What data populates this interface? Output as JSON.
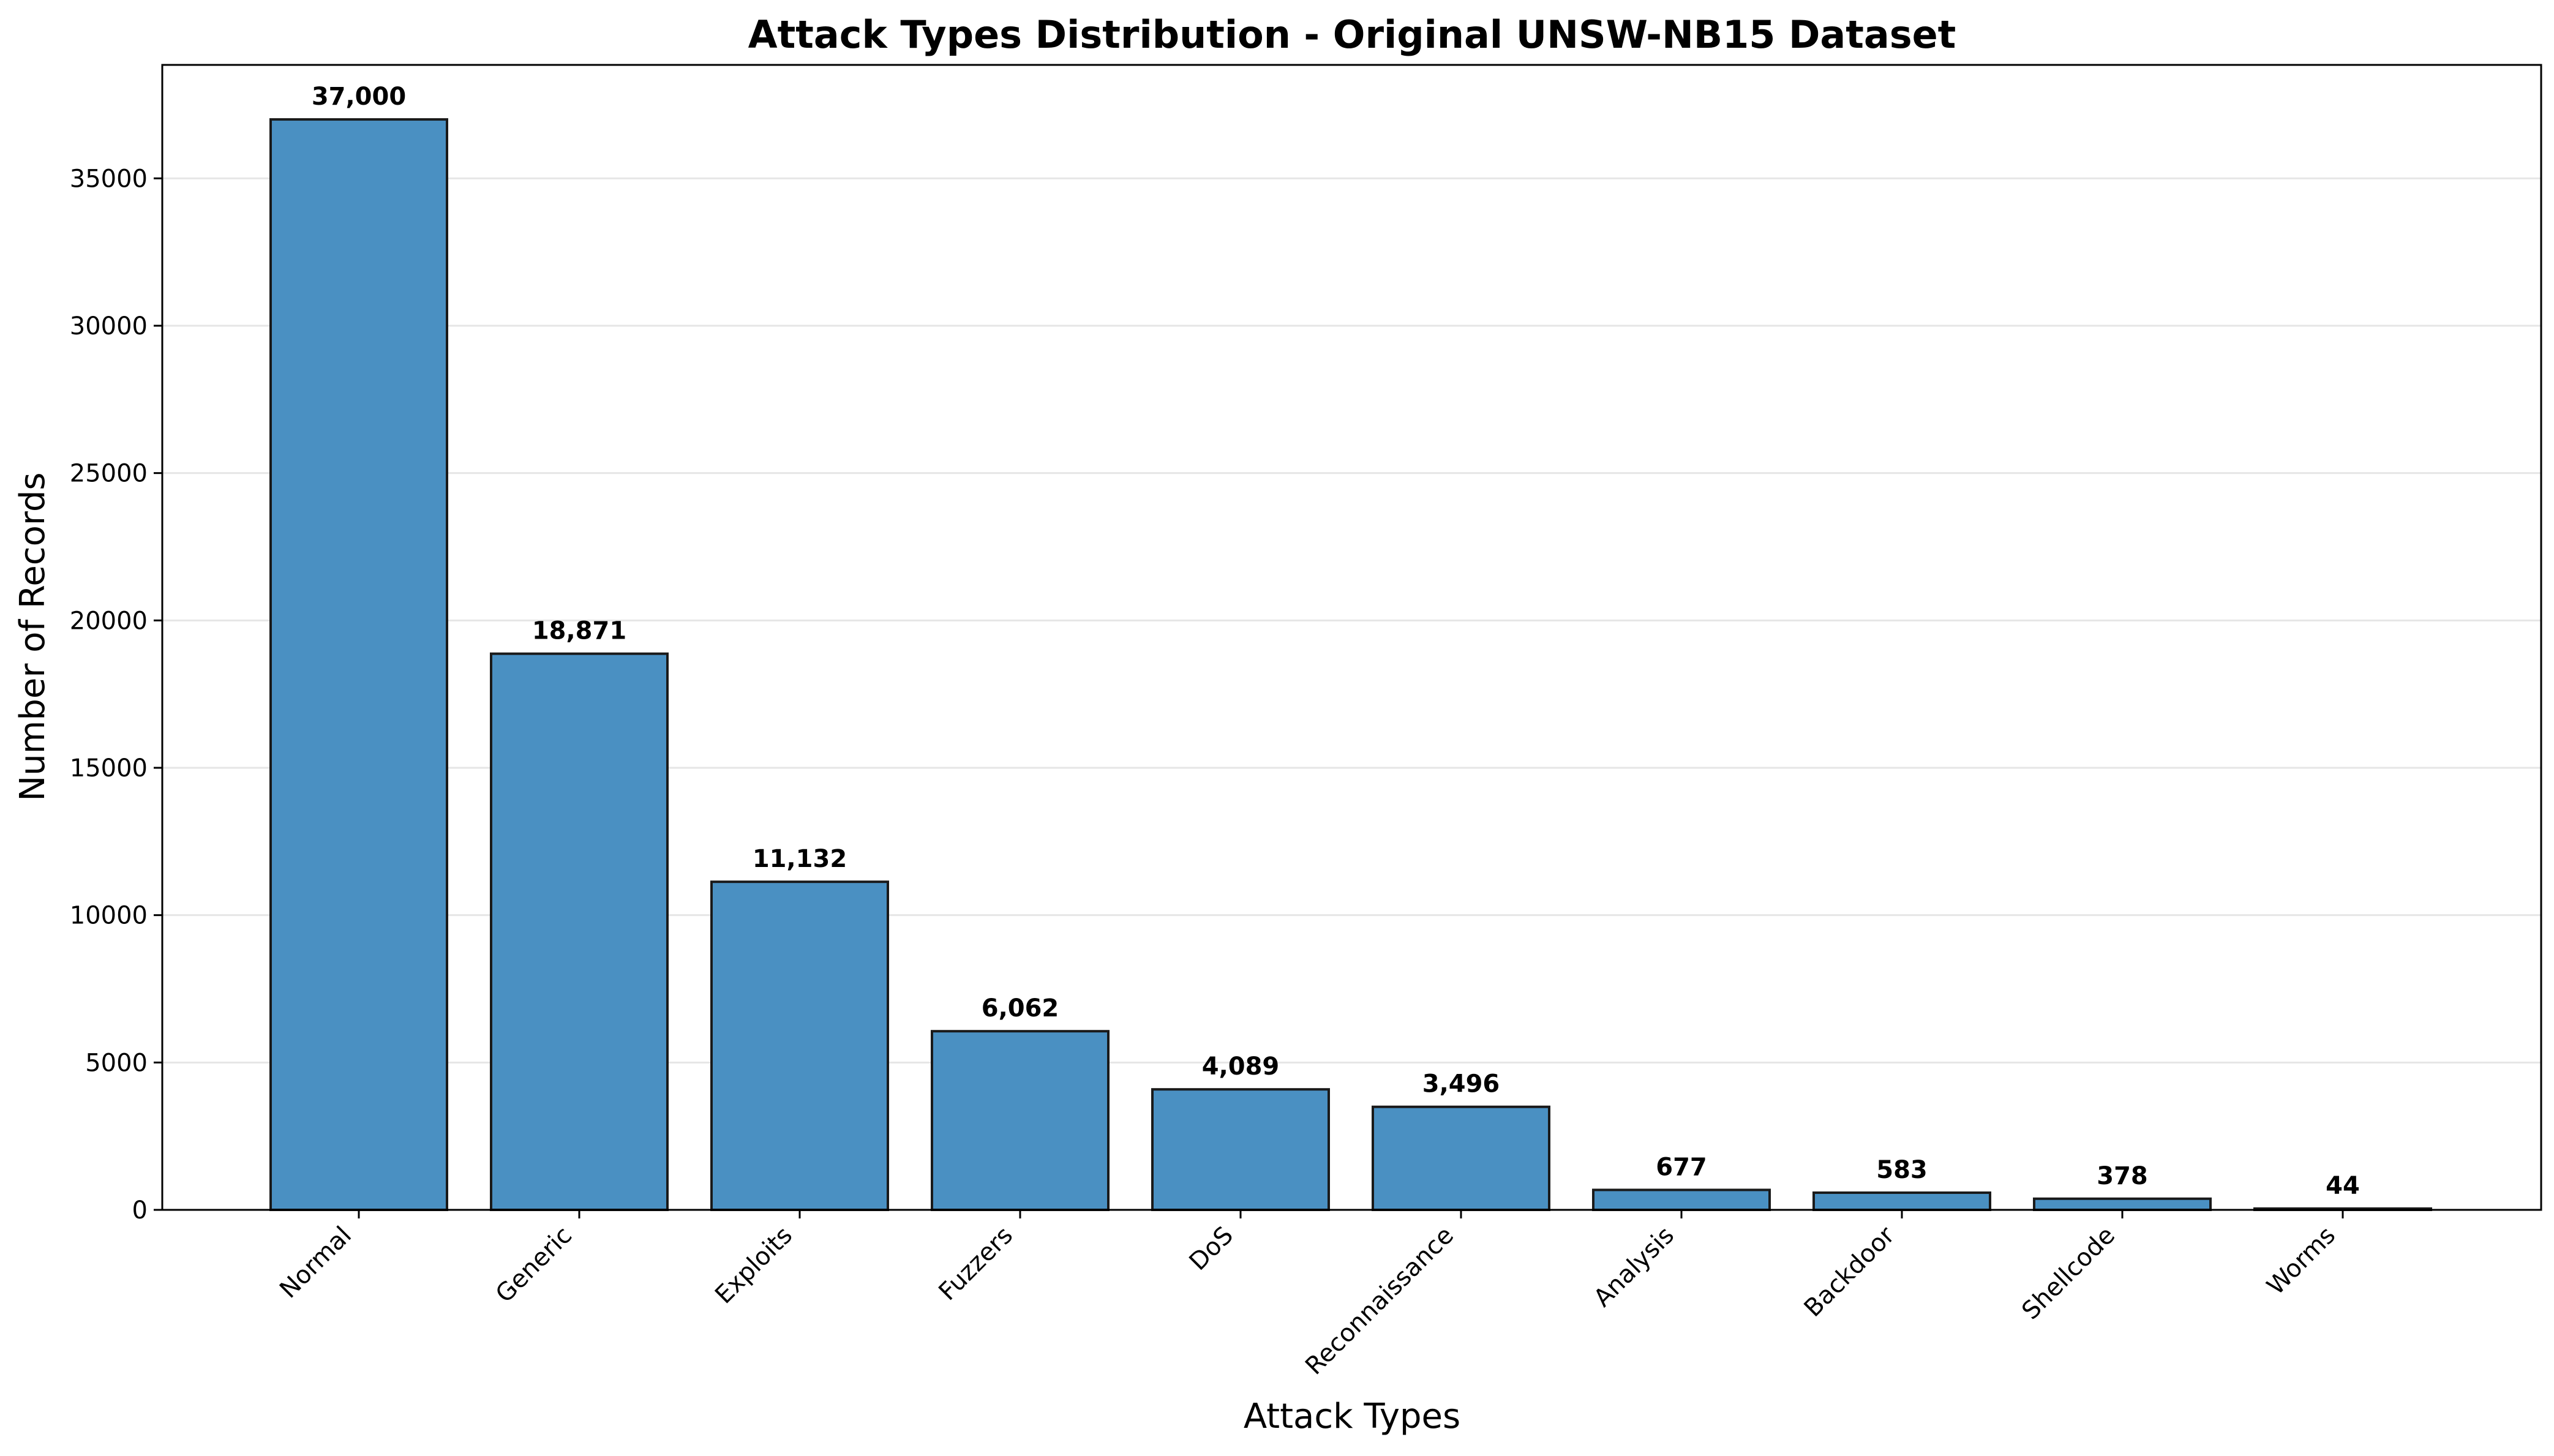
{
  "chart_data": {
    "type": "bar",
    "title": "Attack Types Distribution - Original UNSW-NB15 Dataset",
    "xlabel": "Attack Types",
    "ylabel": "Number of Records",
    "categories": [
      "Normal",
      "Generic",
      "Exploits",
      "Fuzzers",
      "DoS",
      "Reconnaissance",
      "Analysis",
      "Backdoor",
      "Shellcode",
      "Worms"
    ],
    "values": [
      37000,
      18871,
      11132,
      6062,
      4089,
      3496,
      677,
      583,
      378,
      44
    ],
    "value_labels": [
      "37,000",
      "18,871",
      "11,132",
      "6,062",
      "4,089",
      "3,496",
      "677",
      "583",
      "378",
      "44"
    ],
    "yticks": [
      0,
      5000,
      10000,
      15000,
      20000,
      25000,
      30000,
      35000
    ],
    "ytick_labels": [
      "0",
      "5000",
      "10000",
      "15000",
      "20000",
      "25000",
      "30000",
      "35000"
    ],
    "ylim": [
      0,
      38850
    ],
    "grid": "horizontal",
    "bar_color": "#4a90c2",
    "edge_color": "#1a1a1a",
    "grid_color": "#e6e6e6"
  }
}
